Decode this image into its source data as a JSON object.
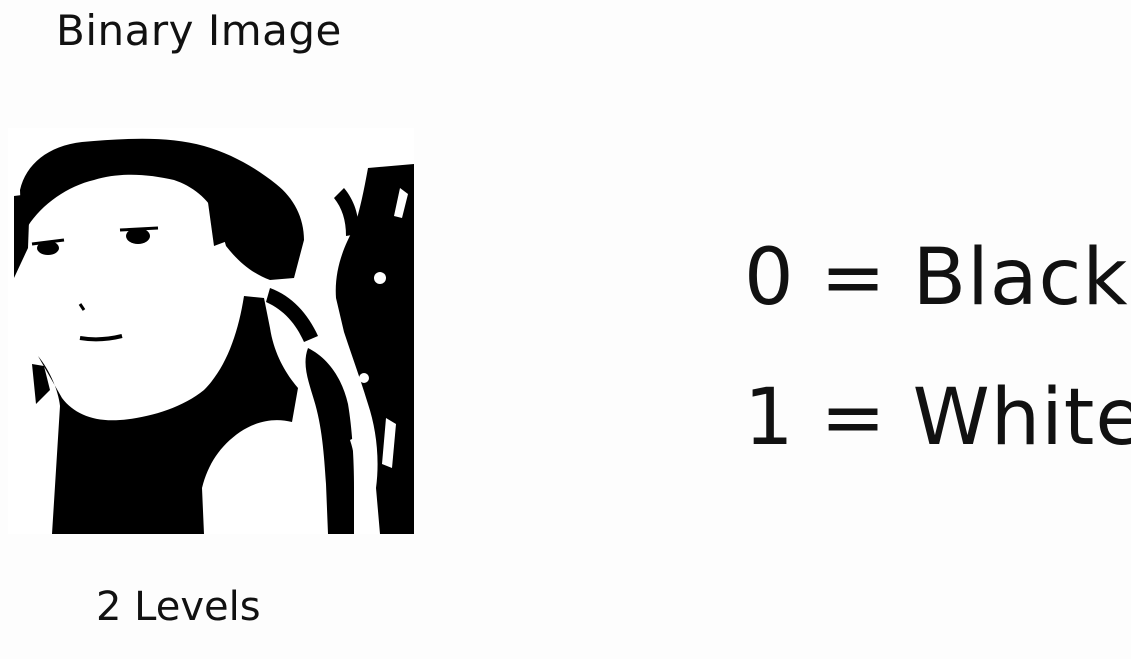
{
  "slide": {
    "title": "Binary Image",
    "caption": "2 Levels",
    "legend": [
      {
        "text": "0 = Black"
      },
      {
        "text": "1 = White"
      }
    ]
  },
  "figure": {
    "kind": "binary-portrait",
    "colors": {
      "foreground": "#000000",
      "background": "#ffffff"
    }
  }
}
